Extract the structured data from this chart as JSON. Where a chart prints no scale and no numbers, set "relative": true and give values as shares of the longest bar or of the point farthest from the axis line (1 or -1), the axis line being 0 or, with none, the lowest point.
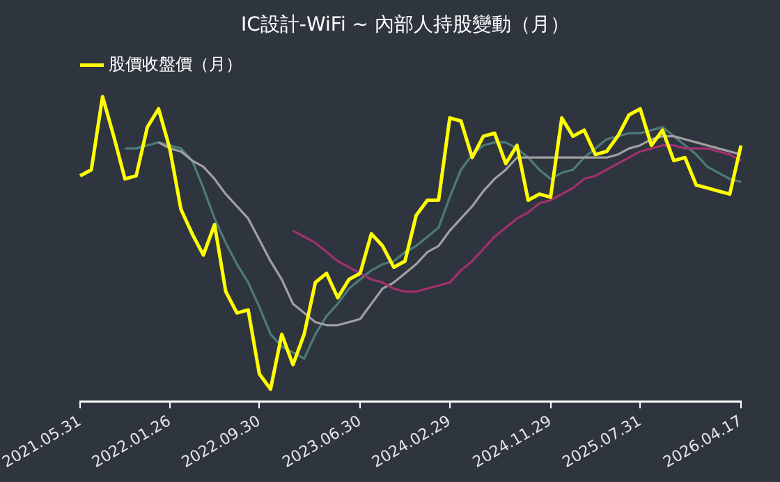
{
  "chart_data": {
    "type": "line",
    "title": "IC設計-WiFi ~ 內部人持股變動（月）",
    "relative": true,
    "legend": "top left",
    "grid": false,
    "marker": "none",
    "line_style": "solid",
    "categories": [
      "2021.05.31",
      null,
      null,
      null,
      null,
      null,
      null,
      null,
      "2022.01.26",
      null,
      null,
      null,
      null,
      null,
      null,
      null,
      "2022.09.30",
      null,
      null,
      null,
      null,
      null,
      null,
      null,
      null,
      "2023.06.30",
      null,
      null,
      null,
      null,
      null,
      null,
      null,
      "2024.02.29",
      null,
      null,
      null,
      null,
      null,
      null,
      null,
      null,
      "2024.11.29",
      null,
      null,
      null,
      null,
      null,
      null,
      null,
      "2025.07.31",
      null,
      null,
      null,
      null,
      null,
      null,
      null,
      null,
      "2026.04.17"
    ],
    "series": [
      {
        "name": "股價收盤價（月）",
        "color": "#ffff00",
        "values": [
          0.74,
          0.76,
          1,
          0.87,
          0.73,
          0.74,
          0.9,
          0.96,
          0.83,
          0.63,
          0.55,
          0.48,
          0.58,
          0.36,
          0.29,
          0.3,
          0.09,
          0.04,
          0.22,
          0.12,
          0.22,
          0.39,
          0.42,
          0.34,
          0.4,
          0.42,
          0.55,
          0.51,
          0.44,
          0.46,
          0.61,
          0.66,
          0.66,
          0.93,
          0.92,
          0.8,
          0.87,
          0.88,
          0.78,
          0.84,
          0.66,
          0.68,
          0.67,
          0.93,
          0.87,
          0.89,
          0.81,
          0.82,
          0.87,
          0.94,
          0.96,
          0.84,
          0.89,
          0.79,
          0.8,
          0.71,
          0.7,
          0.69,
          0.68,
          0.84
        ]
      },
      {
        "color": "#4e7b7a",
        "values": [
          null,
          null,
          null,
          null,
          0.83,
          0.83,
          0.84,
          0.85,
          0.84,
          0.83,
          0.79,
          0.7,
          0.6,
          0.52,
          0.45,
          0.39,
          0.31,
          0.22,
          0.18,
          0.16,
          0.14,
          0.22,
          0.28,
          0.32,
          0.37,
          0.4,
          0.43,
          0.45,
          0.46,
          0.49,
          0.51,
          0.54,
          0.57,
          0.67,
          0.76,
          0.81,
          0.84,
          0.85,
          0.85,
          0.83,
          0.8,
          0.76,
          0.73,
          0.75,
          0.76,
          0.8,
          0.83,
          0.86,
          0.87,
          0.88,
          0.88,
          0.89,
          0.9,
          0.87,
          0.84,
          0.81,
          0.77,
          0.75,
          0.73,
          0.72
        ]
      },
      {
        "color": "#a0a0a0",
        "values": [
          null,
          null,
          null,
          null,
          null,
          null,
          null,
          0.85,
          0.83,
          0.82,
          0.79,
          0.77,
          0.73,
          0.68,
          0.64,
          0.6,
          0.53,
          0.46,
          0.4,
          0.32,
          0.29,
          0.26,
          0.25,
          0.25,
          0.26,
          0.27,
          0.32,
          0.37,
          0.39,
          0.42,
          0.45,
          0.49,
          0.51,
          0.56,
          0.6,
          0.64,
          0.69,
          0.73,
          0.76,
          0.8,
          0.8,
          0.8,
          0.8,
          0.8,
          0.8,
          0.8,
          0.8,
          0.8,
          0.81,
          0.83,
          0.84,
          0.86,
          0.87,
          0.87,
          0.86,
          0.85,
          0.84,
          0.83,
          0.82,
          0.81
        ]
      },
      {
        "color": "#a3306e",
        "values": [
          null,
          null,
          null,
          null,
          null,
          null,
          null,
          null,
          null,
          null,
          null,
          null,
          null,
          null,
          null,
          null,
          null,
          null,
          null,
          0.56,
          0.54,
          0.52,
          0.49,
          0.46,
          0.44,
          0.42,
          0.4,
          0.39,
          0.37,
          0.36,
          0.36,
          0.37,
          0.38,
          0.39,
          0.43,
          0.46,
          0.5,
          0.54,
          0.57,
          0.6,
          0.62,
          0.65,
          0.66,
          0.68,
          0.7,
          0.73,
          0.74,
          0.76,
          0.78,
          0.8,
          0.82,
          0.83,
          0.84,
          0.84,
          0.83,
          0.83,
          0.83,
          0.82,
          0.81,
          0.79
        ]
      }
    ]
  }
}
